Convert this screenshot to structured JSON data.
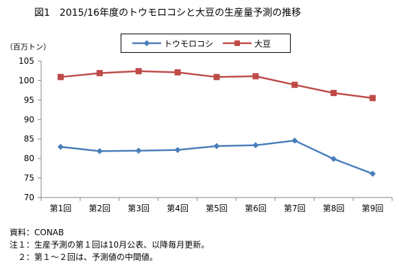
{
  "header": {
    "title": "図1　2015/16年度のトウモロコシと大豆の生産量予測の推移"
  },
  "colors": {
    "corn": "#4A7EBB",
    "soy": "#BE4B48",
    "axis": "#868686"
  },
  "notes": {
    "source": "資料：CONAB",
    "note1": "注１：生産予測の第１回は10月公表、以降毎月更新。",
    "note2": "　２：第１～２回は、予測値の中間値。"
  },
  "chart_data": {
    "type": "line",
    "title": "",
    "ylabel": "（百万トン）",
    "xlabel": "",
    "categories": [
      "第1回",
      "第2回",
      "第3回",
      "第4回",
      "第5回",
      "第6回",
      "第7回",
      "第8回",
      "第9回"
    ],
    "ylim": [
      70,
      105
    ],
    "yticks": [
      70,
      75,
      80,
      85,
      90,
      95,
      100,
      105
    ],
    "grid": false,
    "legend_position": "top",
    "series": [
      {
        "name": "トウモロコシ",
        "marker": "diamond",
        "color": "#4A7EBB",
        "values": [
          83.0,
          81.9,
          82.0,
          82.2,
          83.2,
          83.4,
          84.6,
          79.9,
          76.1
        ]
      },
      {
        "name": "大豆",
        "marker": "square",
        "color": "#BE4B48",
        "values": [
          100.9,
          101.9,
          102.4,
          102.1,
          100.9,
          101.1,
          98.9,
          96.8,
          95.5
        ]
      }
    ]
  }
}
